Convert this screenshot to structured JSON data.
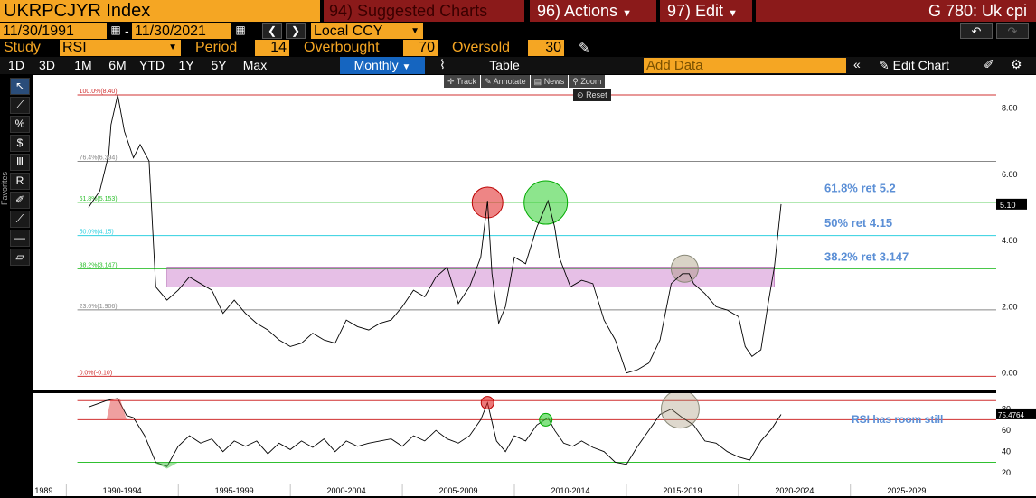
{
  "header": {
    "ticker": "UKRPCJYR Index",
    "suggested": "94) Suggested Charts",
    "actions": "96) Actions",
    "edit": "97) Edit",
    "title": "G 780: Uk cpi"
  },
  "dates": {
    "start": "11/30/1991",
    "end": "11/30/2021",
    "currency": "Local CCY"
  },
  "study": {
    "label": "Study",
    "value": "RSI",
    "period_label": "Period",
    "period": "14",
    "overbought_label": "Overbought",
    "overbought": "70",
    "oversold_label": "Oversold",
    "oversold": "30"
  },
  "tabs": [
    "1D",
    "3D",
    "1M",
    "6M",
    "YTD",
    "1Y",
    "5Y",
    "Max"
  ],
  "frequency": "Monthly",
  "table_label": "Table",
  "add_data_placeholder": "Add Data",
  "edit_chart": "Edit Chart",
  "tools": {
    "track": "Track",
    "annotate": "Annotate",
    "news": "News",
    "zoom": "Zoom",
    "reset": "Reset"
  },
  "favorites": "Favorites",
  "fib": [
    {
      "label": "100.0%(8.40)",
      "value": 8.4,
      "color": "#d03030"
    },
    {
      "label": "76.4%(6.394)",
      "value": 6.394,
      "color": "#888888"
    },
    {
      "label": "61.8%(5.153)",
      "value": 5.153,
      "color": "#30c030"
    },
    {
      "label": "50.0%(4.15)",
      "value": 4.15,
      "color": "#30d0e0"
    },
    {
      "label": "38.2%(3.147)",
      "value": 3.147,
      "color": "#30c030"
    },
    {
      "label": "23.6%(1.906)",
      "value": 1.906,
      "color": "#888888"
    },
    {
      "label": "0.0%(-0.10)",
      "value": -0.1,
      "color": "#d03030"
    }
  ],
  "annotations": {
    "ret618": "61.8% ret 5.2",
    "ret50": "50% ret 4.15",
    "ret382": "38.2% ret 3.147",
    "rsi_note": "RSI has room still"
  },
  "price_axis": [
    "8.00",
    "6.00",
    "4.00",
    "2.00",
    "0.00"
  ],
  "last_price": "5.10",
  "rsi_axis": [
    "80",
    "60",
    "40",
    "20"
  ],
  "rsi_last": "75.4764",
  "x_labels": [
    "1989",
    "1990-1994",
    "1995-1999",
    "2000-2004",
    "2005-2009",
    "2010-2014",
    "2015-2019",
    "2020-2024",
    "2025-2029"
  ],
  "chart_data": {
    "type": "line",
    "x": [
      1991.0,
      1991.5,
      1991.9,
      1992.0,
      1992.3,
      1992.6,
      1993.0,
      1993.3,
      1993.7,
      1994.0,
      1994.5,
      1995.0,
      1995.5,
      1996.0,
      1996.5,
      1997.0,
      1997.5,
      1998.0,
      1998.5,
      1999.0,
      1999.5,
      2000.0,
      2000.5,
      2001.0,
      2001.5,
      2002.0,
      2002.5,
      2003.0,
      2003.5,
      2004.0,
      2004.5,
      2005.0,
      2005.5,
      2006.0,
      2006.5,
      2007.0,
      2007.5,
      2008.0,
      2008.5,
      2008.8,
      2009.0,
      2009.3,
      2009.6,
      2010.0,
      2010.5,
      2011.0,
      2011.5,
      2011.8,
      2012.0,
      2012.5,
      2013.0,
      2013.5,
      2014.0,
      2014.5,
      2015.0,
      2015.5,
      2016.0,
      2016.5,
      2017.0,
      2017.5,
      2017.8,
      2018.0,
      2018.5,
      2019.0,
      2019.5,
      2020.0,
      2020.3,
      2020.6,
      2021.0,
      2021.3,
      2021.6,
      2021.9
    ],
    "values": [
      5.0,
      5.5,
      6.6,
      7.5,
      8.4,
      7.3,
      6.5,
      6.9,
      6.4,
      2.6,
      2.2,
      2.5,
      2.9,
      2.7,
      2.5,
      1.8,
      2.2,
      1.8,
      1.5,
      1.3,
      1.0,
      0.8,
      0.9,
      1.2,
      1.0,
      0.9,
      1.6,
      1.4,
      1.3,
      1.5,
      1.6,
      2.0,
      2.5,
      2.3,
      2.9,
      3.2,
      2.1,
      2.6,
      3.5,
      5.2,
      3.0,
      1.5,
      2.0,
      3.5,
      3.3,
      4.4,
      5.2,
      4.4,
      3.5,
      2.6,
      2.8,
      2.7,
      1.6,
      1.0,
      0.0,
      0.1,
      0.3,
      1.0,
      2.7,
      3.0,
      3.0,
      2.7,
      2.4,
      2.0,
      1.9,
      1.7,
      0.8,
      0.5,
      0.7,
      2.0,
      3.2,
      5.1
    ],
    "ylim": [
      -0.5,
      9.0
    ],
    "rsi": {
      "overbought": 70,
      "oversold": 30,
      "x": [
        1991.0,
        1991.8,
        1992.3,
        1992.7,
        1993.0,
        1993.5,
        1994.0,
        1994.5,
        1995.0,
        1995.5,
        1996.0,
        1996.5,
        1997.0,
        1997.5,
        1998.0,
        1998.5,
        1999.0,
        1999.5,
        2000.0,
        2000.5,
        2001.0,
        2001.5,
        2002.0,
        2002.5,
        2003.0,
        2003.5,
        2004.0,
        2004.5,
        2005.0,
        2005.5,
        2006.0,
        2006.5,
        2007.0,
        2007.5,
        2008.0,
        2008.5,
        2008.8,
        2009.2,
        2009.6,
        2010.0,
        2010.5,
        2011.0,
        2011.5,
        2011.8,
        2012.2,
        2012.6,
        2013.0,
        2013.5,
        2014.0,
        2014.5,
        2015.0,
        2015.5,
        2016.0,
        2016.5,
        2017.0,
        2017.5,
        2018.0,
        2018.5,
        2019.0,
        2019.5,
        2020.0,
        2020.5,
        2021.0,
        2021.5,
        2021.9
      ],
      "values": [
        82,
        88,
        90,
        74,
        72,
        55,
        30,
        26,
        45,
        55,
        48,
        52,
        40,
        50,
        45,
        50,
        38,
        48,
        42,
        50,
        44,
        52,
        40,
        50,
        45,
        48,
        50,
        52,
        45,
        55,
        50,
        60,
        52,
        48,
        55,
        70,
        86,
        50,
        40,
        55,
        50,
        65,
        72,
        60,
        48,
        45,
        50,
        44,
        40,
        30,
        28,
        45,
        60,
        75,
        80,
        72,
        65,
        50,
        48,
        40,
        35,
        32,
        50,
        62,
        75
      ],
      "ylim": [
        10,
        95
      ]
    }
  }
}
